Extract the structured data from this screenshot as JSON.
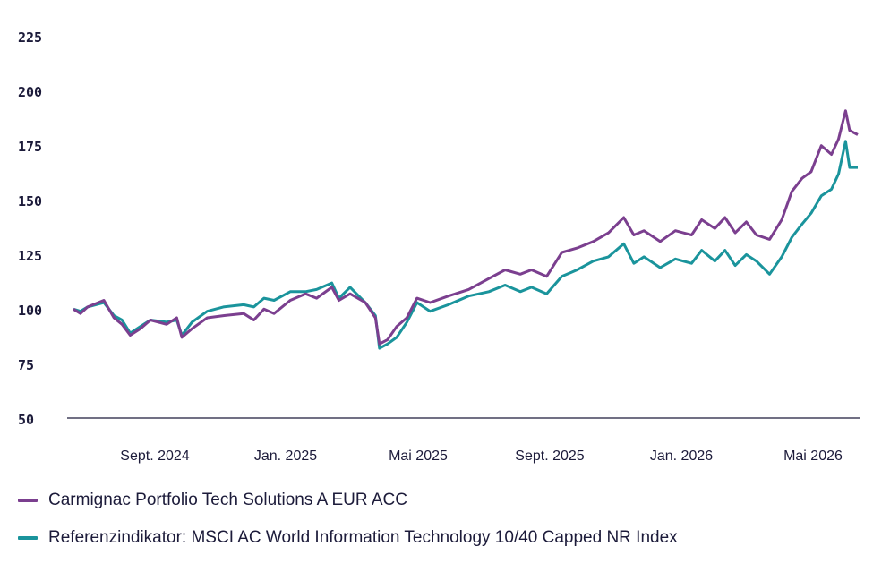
{
  "chart_data": {
    "type": "line",
    "ylim": [
      50,
      225
    ],
    "yticks": [
      "225",
      "200",
      "175",
      "150",
      "125",
      "100",
      "75",
      "50"
    ],
    "xticks": [
      "Sept. 2024",
      "Jan. 2025",
      "Mai 2025",
      "Sept. 2025",
      "Jan. 2026",
      "Mai 2026"
    ],
    "x_start": "2024-06-10",
    "x_end": "2026-06-10",
    "grid": false,
    "legend_position": "bottom-left",
    "series": [
      {
        "name": "Carmignac Portfolio Tech Solutions A EUR ACC",
        "color": "#7b3f8f",
        "points": [
          [
            "2024-06-10",
            100
          ],
          [
            "2024-06-17",
            98
          ],
          [
            "2024-06-24",
            101
          ],
          [
            "2024-07-10",
            104
          ],
          [
            "2024-07-20",
            96
          ],
          [
            "2024-07-28",
            93
          ],
          [
            "2024-08-05",
            88
          ],
          [
            "2024-08-15",
            91
          ],
          [
            "2024-08-25",
            95
          ],
          [
            "2024-09-10",
            93
          ],
          [
            "2024-09-20",
            96
          ],
          [
            "2024-09-25",
            87
          ],
          [
            "2024-10-05",
            91
          ],
          [
            "2024-10-20",
            96
          ],
          [
            "2024-11-05",
            97
          ],
          [
            "2024-11-25",
            98
          ],
          [
            "2024-12-05",
            95
          ],
          [
            "2024-12-15",
            100
          ],
          [
            "2024-12-25",
            98
          ],
          [
            "2025-01-10",
            104
          ],
          [
            "2025-01-25",
            107
          ],
          [
            "2025-02-05",
            105
          ],
          [
            "2025-02-20",
            110
          ],
          [
            "2025-02-27",
            104
          ],
          [
            "2025-03-10",
            107
          ],
          [
            "2025-03-25",
            103
          ],
          [
            "2025-04-04",
            96
          ],
          [
            "2025-04-08",
            84
          ],
          [
            "2025-04-16",
            86
          ],
          [
            "2025-04-25",
            92
          ],
          [
            "2025-05-05",
            96
          ],
          [
            "2025-05-15",
            105
          ],
          [
            "2025-05-28",
            103
          ],
          [
            "2025-06-15",
            106
          ],
          [
            "2025-07-05",
            109
          ],
          [
            "2025-07-25",
            114
          ],
          [
            "2025-08-10",
            118
          ],
          [
            "2025-08-25",
            116
          ],
          [
            "2025-09-05",
            118
          ],
          [
            "2025-09-20",
            115
          ],
          [
            "2025-10-05",
            126
          ],
          [
            "2025-10-20",
            128
          ],
          [
            "2025-11-05",
            131
          ],
          [
            "2025-11-20",
            135
          ],
          [
            "2025-12-05",
            142
          ],
          [
            "2025-12-15",
            134
          ],
          [
            "2025-12-25",
            136
          ],
          [
            "2026-01-10",
            131
          ],
          [
            "2026-01-25",
            136
          ],
          [
            "2026-02-10",
            134
          ],
          [
            "2026-02-20",
            141
          ],
          [
            "2026-03-05",
            137
          ],
          [
            "2026-03-15",
            142
          ],
          [
            "2026-03-25",
            135
          ],
          [
            "2026-04-05",
            140
          ],
          [
            "2026-04-15",
            134
          ],
          [
            "2026-04-28",
            132
          ],
          [
            "2026-05-10",
            141
          ],
          [
            "2026-05-20",
            154
          ],
          [
            "2026-05-30",
            160
          ],
          [
            "2026-06-08",
            163
          ],
          [
            "2026-06-18",
            175
          ],
          [
            "2026-06-28",
            171
          ],
          [
            "2026-07-05",
            178
          ],
          [
            "2026-07-12",
            191
          ],
          [
            "2026-07-16",
            182
          ],
          [
            "2026-07-24",
            180
          ]
        ]
      },
      {
        "name": "Referenzindikator: MSCI AC World Information Technology 10/40 Capped NR Index",
        "color": "#1a949c",
        "points": [
          [
            "2024-06-10",
            100
          ],
          [
            "2024-06-17",
            99
          ],
          [
            "2024-06-24",
            101
          ],
          [
            "2024-07-10",
            103
          ],
          [
            "2024-07-20",
            97
          ],
          [
            "2024-07-28",
            95
          ],
          [
            "2024-08-05",
            89
          ],
          [
            "2024-08-15",
            92
          ],
          [
            "2024-08-25",
            95
          ],
          [
            "2024-09-10",
            94
          ],
          [
            "2024-09-20",
            95
          ],
          [
            "2024-09-25",
            88
          ],
          [
            "2024-10-05",
            94
          ],
          [
            "2024-10-20",
            99
          ],
          [
            "2024-11-05",
            101
          ],
          [
            "2024-11-25",
            102
          ],
          [
            "2024-12-05",
            101
          ],
          [
            "2024-12-15",
            105
          ],
          [
            "2024-12-25",
            104
          ],
          [
            "2025-01-10",
            108
          ],
          [
            "2025-01-25",
            108
          ],
          [
            "2025-02-05",
            109
          ],
          [
            "2025-02-20",
            112
          ],
          [
            "2025-02-27",
            105
          ],
          [
            "2025-03-10",
            110
          ],
          [
            "2025-03-25",
            103
          ],
          [
            "2025-04-04",
            97
          ],
          [
            "2025-04-08",
            82
          ],
          [
            "2025-04-16",
            84
          ],
          [
            "2025-04-25",
            87
          ],
          [
            "2025-05-05",
            94
          ],
          [
            "2025-05-15",
            103
          ],
          [
            "2025-05-28",
            99
          ],
          [
            "2025-06-15",
            102
          ],
          [
            "2025-07-05",
            106
          ],
          [
            "2025-07-25",
            108
          ],
          [
            "2025-08-10",
            111
          ],
          [
            "2025-08-25",
            108
          ],
          [
            "2025-09-05",
            110
          ],
          [
            "2025-09-20",
            107
          ],
          [
            "2025-10-05",
            115
          ],
          [
            "2025-10-20",
            118
          ],
          [
            "2025-11-05",
            122
          ],
          [
            "2025-11-20",
            124
          ],
          [
            "2025-12-05",
            130
          ],
          [
            "2025-12-15",
            121
          ],
          [
            "2025-12-25",
            124
          ],
          [
            "2026-01-10",
            119
          ],
          [
            "2026-01-25",
            123
          ],
          [
            "2026-02-10",
            121
          ],
          [
            "2026-02-20",
            127
          ],
          [
            "2026-03-05",
            122
          ],
          [
            "2026-03-15",
            127
          ],
          [
            "2026-03-25",
            120
          ],
          [
            "2026-04-05",
            125
          ],
          [
            "2026-04-15",
            122
          ],
          [
            "2026-04-28",
            116
          ],
          [
            "2026-05-10",
            124
          ],
          [
            "2026-05-20",
            133
          ],
          [
            "2026-05-30",
            139
          ],
          [
            "2026-06-08",
            144
          ],
          [
            "2026-06-18",
            152
          ],
          [
            "2026-06-28",
            155
          ],
          [
            "2026-07-05",
            162
          ],
          [
            "2026-07-12",
            177
          ],
          [
            "2026-07-16",
            165
          ],
          [
            "2026-07-24",
            165
          ]
        ]
      }
    ]
  }
}
